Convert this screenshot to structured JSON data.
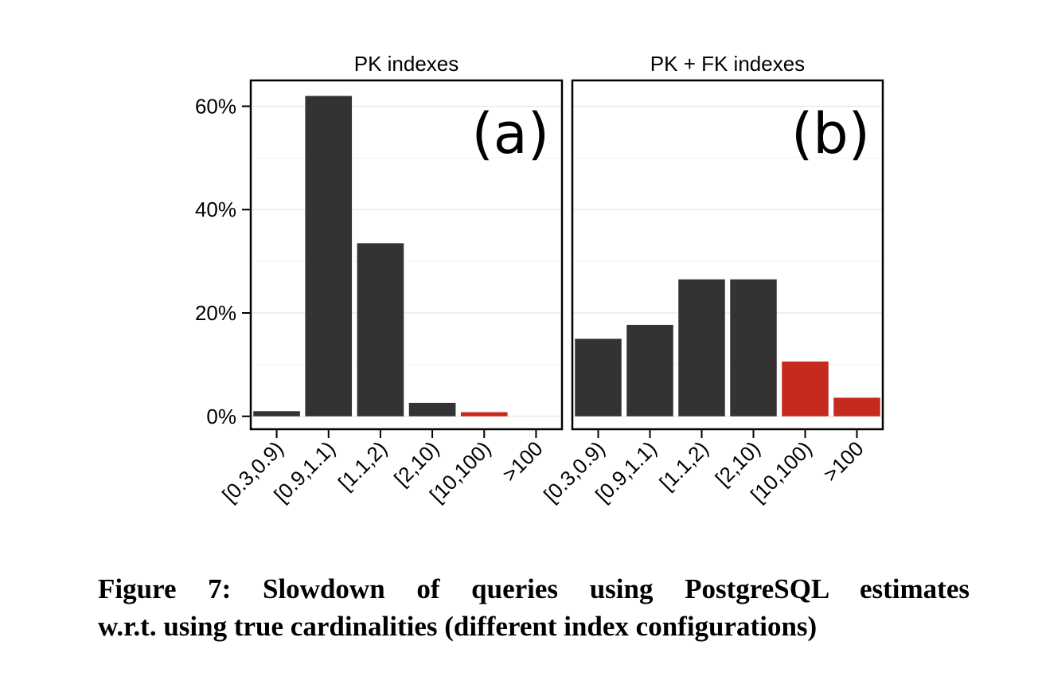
{
  "chart_data": [
    {
      "type": "bar",
      "title": "PK indexes",
      "panel_label": "(a)",
      "categories": [
        "[0.3,0.9)",
        "[0.9,1.1)",
        "[1.1,2)",
        "[2,10)",
        "[10,100)",
        ">100"
      ],
      "values": [
        1.0,
        62.0,
        33.5,
        2.6,
        0.8,
        0.0
      ],
      "bar_colors": [
        "#333333",
        "#333333",
        "#333333",
        "#333333",
        "#c62a1f",
        "#c62a1f"
      ],
      "ylim": [
        -2.5,
        65
      ],
      "yticks": [
        0,
        20,
        40,
        60
      ],
      "ytick_labels": [
        "0%",
        "20%",
        "40%",
        "60%"
      ],
      "y_unit": "%",
      "grid": true,
      "xlabel": "",
      "ylabel": ""
    },
    {
      "type": "bar",
      "title": "PK + FK indexes",
      "panel_label": "(b)",
      "categories": [
        "[0.3,0.9)",
        "[0.9,1.1)",
        "[1.1,2)",
        "[2,10)",
        "[10,100)",
        ">100"
      ],
      "values": [
        15.0,
        17.7,
        26.5,
        26.5,
        10.6,
        3.6
      ],
      "bar_colors": [
        "#333333",
        "#333333",
        "#333333",
        "#333333",
        "#c62a1f",
        "#c62a1f"
      ],
      "ylim": [
        -2.5,
        65
      ],
      "yticks": [
        0,
        20,
        40,
        60
      ],
      "ytick_labels": [
        "0%",
        "20%",
        "40%",
        "60%"
      ],
      "y_unit": "%",
      "grid": true,
      "xlabel": "",
      "ylabel": ""
    }
  ],
  "caption": {
    "line1": "Figure 7: Slowdown of queries using PostgreSQL estimates",
    "line2": "w.r.t. using true cardinalities (different index configurations)"
  },
  "colors": {
    "bar_default": "#333333",
    "bar_highlight": "#c62a1f",
    "grid_major": "#e6e6e6",
    "grid_minor": "#f3f3f3"
  }
}
